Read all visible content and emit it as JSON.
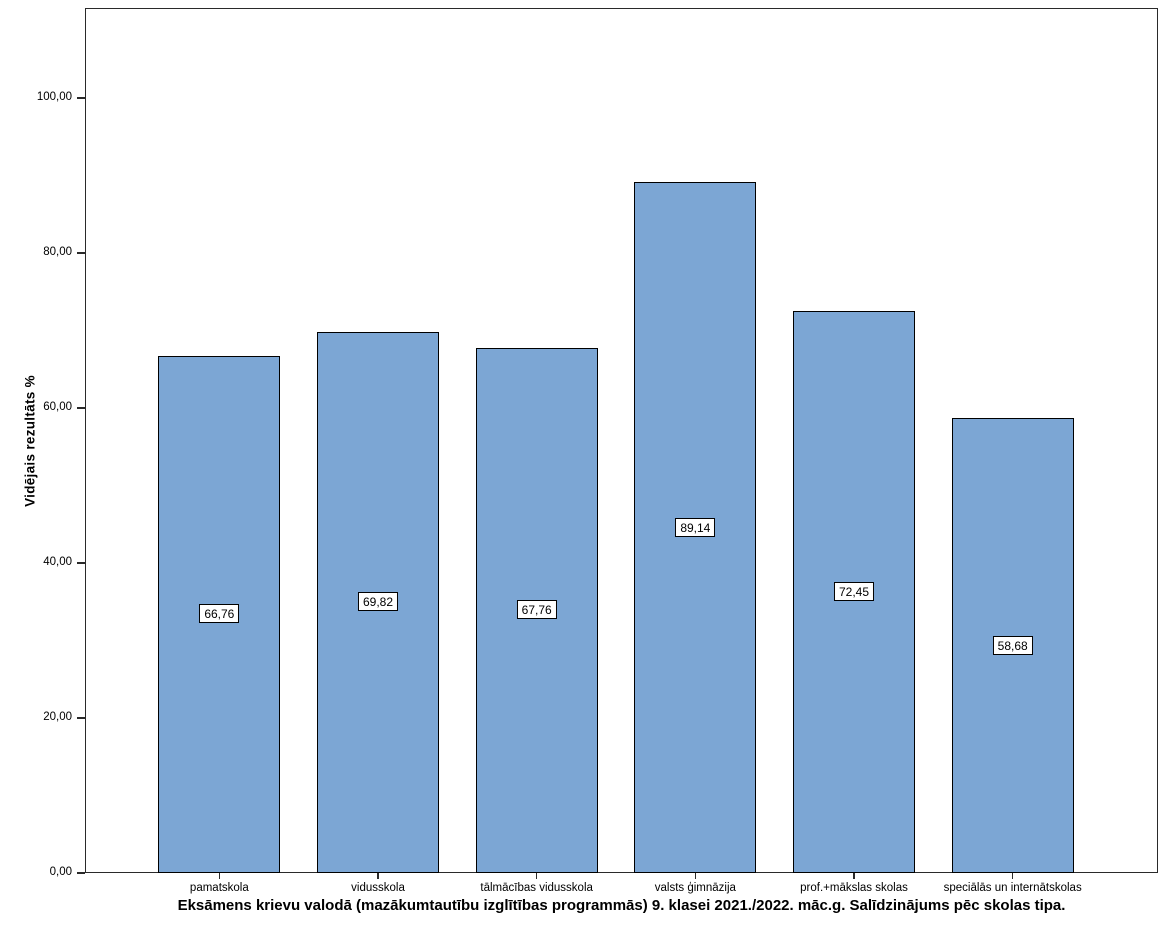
{
  "chart_data": {
    "type": "bar",
    "title": "Eksāmens krievu valodā (mazākumtautību izglītības programmās) 9. klasei 2021./2022. māc.g. Salīdzinājums pēc skolas tipa.",
    "ylabel": "Vidējais rezultāts %",
    "xlabel": "",
    "categories": [
      "pamatskola",
      "vidusskola",
      "tālmācības vidusskola",
      "valsts ģimnāzija",
      "prof.+mākslas skolas",
      "speciālās un internātskolas"
    ],
    "values": [
      66.76,
      69.82,
      67.76,
      89.14,
      72.45,
      58.68
    ],
    "value_labels": [
      "66,76",
      "69,82",
      "67,76",
      "89,14",
      "72,45",
      "58,68"
    ],
    "ytick_values": [
      0,
      20,
      40,
      60,
      80,
      100
    ],
    "ytick_labels": [
      "0,00",
      "20,00",
      "40,00",
      "60,00",
      "80,00",
      "100,00"
    ],
    "ylim": [
      0,
      111.6
    ],
    "grid": false,
    "legend": "none",
    "bar_color": "#7CA6D4",
    "bar_border_color": "#000000",
    "frame_color": "#2a2a2a"
  }
}
